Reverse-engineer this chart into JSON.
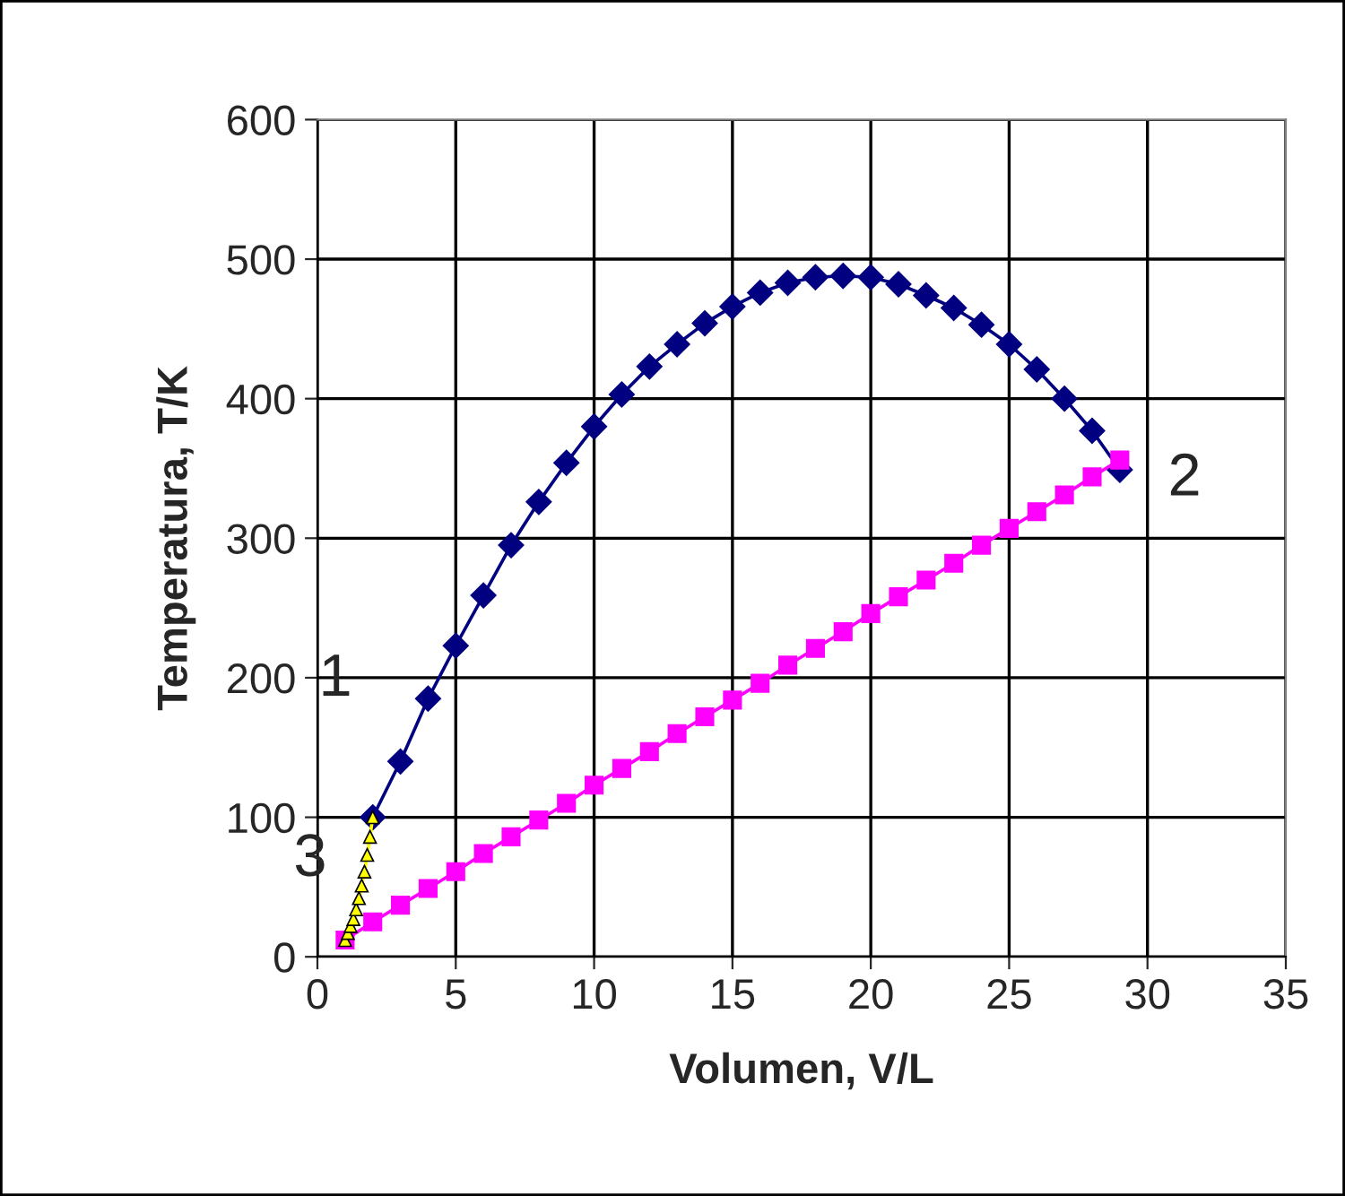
{
  "chart_data": {
    "type": "line",
    "xlabel": "Volumen, V/L",
    "ylabel": "Temperatura, T/K",
    "xlim": [
      0,
      35
    ],
    "xticks": [
      0,
      5,
      10,
      15,
      20,
      25,
      30,
      35
    ],
    "ylim": [
      0,
      600
    ],
    "yticks": [
      0,
      100,
      200,
      300,
      400,
      500,
      600
    ],
    "grid": true,
    "legend": false,
    "line_style": "solid",
    "series": [
      {
        "color": "#000080",
        "marker": "diamond",
        "x": [
          2,
          3,
          4,
          5,
          6,
          7,
          8,
          9,
          10,
          11,
          12,
          13,
          14,
          15,
          16,
          17,
          18,
          19,
          20,
          21,
          22,
          23,
          24,
          25,
          26,
          27,
          28,
          29
        ],
        "values": [
          100,
          140,
          185,
          223,
          259,
          295,
          326,
          354,
          380,
          403,
          423,
          439,
          454,
          466,
          476,
          483,
          487,
          488,
          487,
          482,
          474,
          465,
          453,
          439,
          421,
          400,
          377,
          349
        ]
      },
      {
        "color": "#ff00ff",
        "marker": "square",
        "x": [
          1,
          2,
          3,
          4,
          5,
          6,
          7,
          8,
          9,
          10,
          11,
          12,
          13,
          14,
          15,
          16,
          17,
          18,
          19,
          20,
          21,
          22,
          23,
          24,
          25,
          26,
          27,
          28,
          29
        ],
        "values": [
          12,
          25,
          37,
          49,
          61,
          74,
          86,
          98,
          110,
          123,
          135,
          147,
          160,
          172,
          184,
          196,
          209,
          221,
          233,
          246,
          258,
          270,
          282,
          295,
          307,
          319,
          331,
          344,
          356
        ]
      },
      {
        "color": "#ffff00",
        "marker": "triangle",
        "x": [
          1.0,
          1.1,
          1.2,
          1.3,
          1.4,
          1.5,
          1.6,
          1.7,
          1.8,
          1.9,
          2.0
        ],
        "values": [
          12,
          17,
          22,
          27,
          34,
          42,
          51,
          61,
          73,
          86,
          100
        ]
      }
    ],
    "annotations": [
      {
        "text": "1",
        "x": 2,
        "y": 100
      },
      {
        "text": "2",
        "x": 29,
        "y": 349
      },
      {
        "text": "3",
        "x": 1,
        "y": 12
      }
    ]
  }
}
